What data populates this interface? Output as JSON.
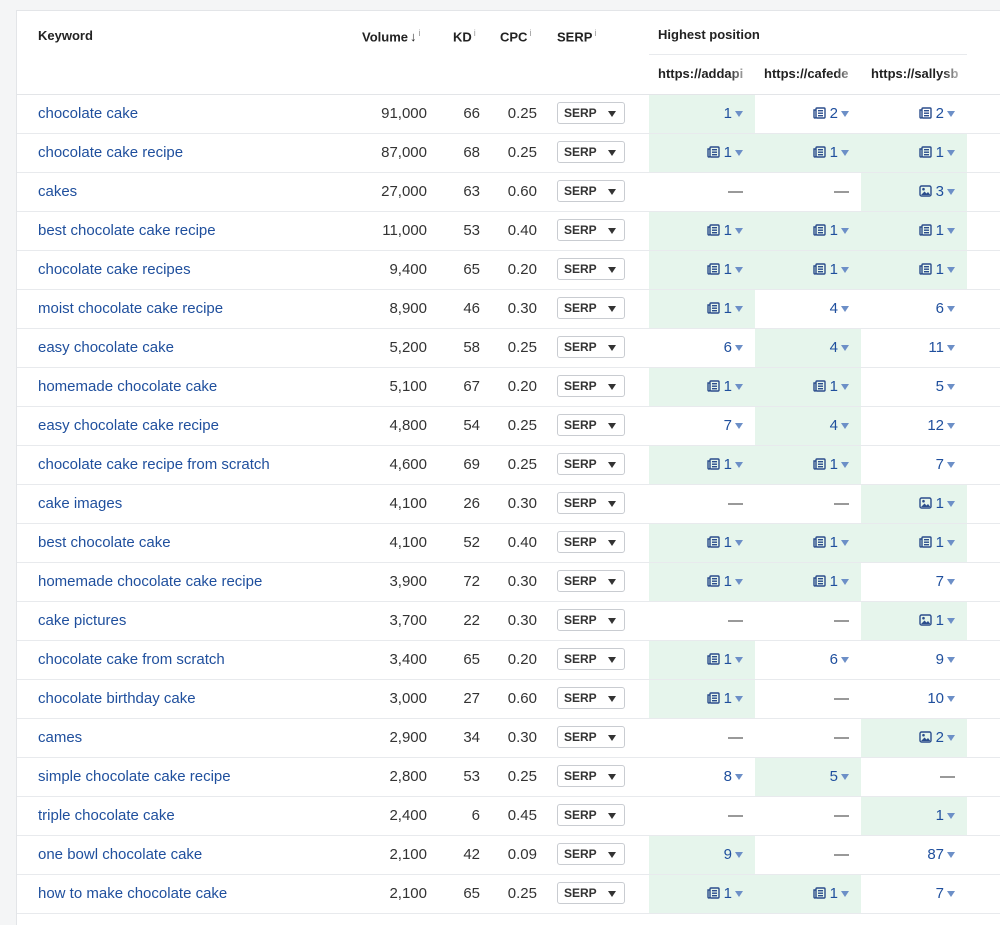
{
  "header": {
    "keyword": "Keyword",
    "volume": "Volume",
    "volume_sort_arrow": "↓",
    "kd": "KD",
    "cpc": "CPC",
    "serp": "SERP",
    "info_mark": "i",
    "highest_position": "Highest position",
    "urls": [
      "https://addapi",
      "https://cafede",
      "https://sallysb"
    ]
  },
  "serp_button_label": "SERP",
  "feature_icons": {
    "news": "news-feature-icon",
    "image": "image-pack-icon"
  },
  "colors": {
    "link": "#1f4f9d",
    "highlight": "#e6f5ec",
    "icon": "#2b4d8c"
  },
  "rows": [
    {
      "keyword": "chocolate cake",
      "volume": "91,000",
      "kd": "66",
      "cpc": "0.25",
      "positions": [
        {
          "v": "1",
          "icon": "",
          "green": true
        },
        {
          "v": "2",
          "icon": "news",
          "green": false
        },
        {
          "v": "2",
          "icon": "news",
          "green": false
        }
      ]
    },
    {
      "keyword": "chocolate cake recipe",
      "volume": "87,000",
      "kd": "68",
      "cpc": "0.25",
      "positions": [
        {
          "v": "1",
          "icon": "news",
          "green": true
        },
        {
          "v": "1",
          "icon": "news",
          "green": true
        },
        {
          "v": "1",
          "icon": "news",
          "green": true
        }
      ]
    },
    {
      "keyword": "cakes",
      "volume": "27,000",
      "kd": "63",
      "cpc": "0.60",
      "positions": [
        {
          "v": "—",
          "icon": "",
          "green": false
        },
        {
          "v": "—",
          "icon": "",
          "green": false
        },
        {
          "v": "3",
          "icon": "image",
          "green": true
        }
      ]
    },
    {
      "keyword": "best chocolate cake recipe",
      "volume": "11,000",
      "kd": "53",
      "cpc": "0.40",
      "positions": [
        {
          "v": "1",
          "icon": "news",
          "green": true
        },
        {
          "v": "1",
          "icon": "news",
          "green": true
        },
        {
          "v": "1",
          "icon": "news",
          "green": true
        }
      ]
    },
    {
      "keyword": "chocolate cake recipes",
      "volume": "9,400",
      "kd": "65",
      "cpc": "0.20",
      "positions": [
        {
          "v": "1",
          "icon": "news",
          "green": true
        },
        {
          "v": "1",
          "icon": "news",
          "green": true
        },
        {
          "v": "1",
          "icon": "news",
          "green": true
        }
      ]
    },
    {
      "keyword": "moist chocolate cake recipe",
      "volume": "8,900",
      "kd": "46",
      "cpc": "0.30",
      "positions": [
        {
          "v": "1",
          "icon": "news",
          "green": true
        },
        {
          "v": "4",
          "icon": "",
          "green": false
        },
        {
          "v": "6",
          "icon": "",
          "green": false
        }
      ]
    },
    {
      "keyword": "easy chocolate cake",
      "volume": "5,200",
      "kd": "58",
      "cpc": "0.25",
      "positions": [
        {
          "v": "6",
          "icon": "",
          "green": false
        },
        {
          "v": "4",
          "icon": "",
          "green": true
        },
        {
          "v": "11",
          "icon": "",
          "green": false
        }
      ]
    },
    {
      "keyword": "homemade chocolate cake",
      "volume": "5,100",
      "kd": "67",
      "cpc": "0.20",
      "positions": [
        {
          "v": "1",
          "icon": "news",
          "green": true
        },
        {
          "v": "1",
          "icon": "news",
          "green": true
        },
        {
          "v": "5",
          "icon": "",
          "green": false
        }
      ]
    },
    {
      "keyword": "easy chocolate cake recipe",
      "volume": "4,800",
      "kd": "54",
      "cpc": "0.25",
      "positions": [
        {
          "v": "7",
          "icon": "",
          "green": false
        },
        {
          "v": "4",
          "icon": "",
          "green": true
        },
        {
          "v": "12",
          "icon": "",
          "green": false
        }
      ]
    },
    {
      "keyword": "chocolate cake recipe from scratch",
      "volume": "4,600",
      "kd": "69",
      "cpc": "0.25",
      "positions": [
        {
          "v": "1",
          "icon": "news",
          "green": true
        },
        {
          "v": "1",
          "icon": "news",
          "green": true
        },
        {
          "v": "7",
          "icon": "",
          "green": false
        }
      ]
    },
    {
      "keyword": "cake images",
      "volume": "4,100",
      "kd": "26",
      "cpc": "0.30",
      "positions": [
        {
          "v": "—",
          "icon": "",
          "green": false
        },
        {
          "v": "—",
          "icon": "",
          "green": false
        },
        {
          "v": "1",
          "icon": "image",
          "green": true
        }
      ]
    },
    {
      "keyword": "best chocolate cake",
      "volume": "4,100",
      "kd": "52",
      "cpc": "0.40",
      "positions": [
        {
          "v": "1",
          "icon": "news",
          "green": true
        },
        {
          "v": "1",
          "icon": "news",
          "green": true
        },
        {
          "v": "1",
          "icon": "news",
          "green": true
        }
      ]
    },
    {
      "keyword": "homemade chocolate cake recipe",
      "volume": "3,900",
      "kd": "72",
      "cpc": "0.30",
      "positions": [
        {
          "v": "1",
          "icon": "news",
          "green": true
        },
        {
          "v": "1",
          "icon": "news",
          "green": true
        },
        {
          "v": "7",
          "icon": "",
          "green": false
        }
      ]
    },
    {
      "keyword": "cake pictures",
      "volume": "3,700",
      "kd": "22",
      "cpc": "0.30",
      "positions": [
        {
          "v": "—",
          "icon": "",
          "green": false
        },
        {
          "v": "—",
          "icon": "",
          "green": false
        },
        {
          "v": "1",
          "icon": "image",
          "green": true
        }
      ]
    },
    {
      "keyword": "chocolate cake from scratch",
      "volume": "3,400",
      "kd": "65",
      "cpc": "0.20",
      "positions": [
        {
          "v": "1",
          "icon": "news",
          "green": true
        },
        {
          "v": "6",
          "icon": "",
          "green": false
        },
        {
          "v": "9",
          "icon": "",
          "green": false
        }
      ]
    },
    {
      "keyword": "chocolate birthday cake",
      "volume": "3,000",
      "kd": "27",
      "cpc": "0.60",
      "positions": [
        {
          "v": "1",
          "icon": "news",
          "green": true
        },
        {
          "v": "—",
          "icon": "",
          "green": false
        },
        {
          "v": "10",
          "icon": "",
          "green": false
        }
      ]
    },
    {
      "keyword": "cames",
      "volume": "2,900",
      "kd": "34",
      "cpc": "0.30",
      "positions": [
        {
          "v": "—",
          "icon": "",
          "green": false
        },
        {
          "v": "—",
          "icon": "",
          "green": false
        },
        {
          "v": "2",
          "icon": "image",
          "green": true
        }
      ]
    },
    {
      "keyword": "simple chocolate cake recipe",
      "volume": "2,800",
      "kd": "53",
      "cpc": "0.25",
      "positions": [
        {
          "v": "8",
          "icon": "",
          "green": false
        },
        {
          "v": "5",
          "icon": "",
          "green": true
        },
        {
          "v": "—",
          "icon": "",
          "green": false
        }
      ]
    },
    {
      "keyword": "triple chocolate cake",
      "volume": "2,400",
      "kd": "6",
      "cpc": "0.45",
      "positions": [
        {
          "v": "—",
          "icon": "",
          "green": false
        },
        {
          "v": "—",
          "icon": "",
          "green": false
        },
        {
          "v": "1",
          "icon": "",
          "green": true
        }
      ]
    },
    {
      "keyword": "one bowl chocolate cake",
      "volume": "2,100",
      "kd": "42",
      "cpc": "0.09",
      "positions": [
        {
          "v": "9",
          "icon": "",
          "green": true
        },
        {
          "v": "—",
          "icon": "",
          "green": false
        },
        {
          "v": "87",
          "icon": "",
          "green": false
        }
      ]
    },
    {
      "keyword": "how to make chocolate cake",
      "volume": "2,100",
      "kd": "65",
      "cpc": "0.25",
      "positions": [
        {
          "v": "1",
          "icon": "news",
          "green": true
        },
        {
          "v": "1",
          "icon": "news",
          "green": true
        },
        {
          "v": "7",
          "icon": "",
          "green": false
        }
      ]
    }
  ]
}
